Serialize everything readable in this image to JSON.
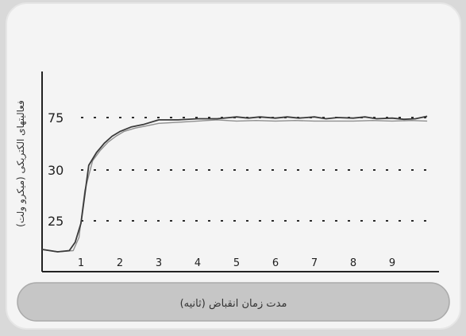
{
  "chart_data": {
    "type": "line",
    "ylabel": "فعالیتهای الکتریکی (میکرو ولت)",
    "xlabel": "مدت زمان انقباض (ثانیه)",
    "x_ticks": [
      "1",
      "2",
      "3",
      "4",
      "5",
      "6",
      "7",
      "8",
      "9"
    ],
    "reference_lines": [
      {
        "label": "75",
        "level": 75
      },
      {
        "label": "30",
        "level": 30
      },
      {
        "label": "25",
        "level": 25
      }
    ],
    "series": [
      {
        "style": "dark",
        "x": [
          0,
          0.4,
          0.7,
          0.85,
          1.0,
          1.2,
          1.4,
          1.6,
          1.8,
          2.0,
          2.3,
          2.6,
          3.0,
          3.5,
          4.0,
          4.5,
          5.0,
          5.3,
          5.6,
          6.0,
          6.3,
          6.6,
          7.0,
          7.3,
          7.6,
          8.0,
          8.3,
          8.6,
          9.0,
          9.3,
          9.6,
          9.9
        ],
        "y": [
          13,
          12,
          12.5,
          16,
          24,
          34,
          45,
          53,
          59,
          63,
          67,
          69,
          73,
          73,
          74,
          74,
          75.5,
          74.5,
          75.5,
          74.5,
          75.5,
          74.5,
          75.5,
          74,
          75,
          74.5,
          75.5,
          74,
          74.5,
          73.5,
          74,
          76
        ]
      },
      {
        "style": "light",
        "x": [
          0,
          0.4,
          0.8,
          0.95,
          1.1,
          1.3,
          1.5,
          1.7,
          1.9,
          2.1,
          2.4,
          2.7,
          3.0,
          3.5,
          4.0,
          4.5,
          5.0,
          5.5,
          6.0,
          6.5,
          7.0,
          7.5,
          8.0,
          8.5,
          9.0,
          9.5,
          9.9
        ],
        "y": [
          13,
          12,
          12.5,
          18,
          28,
          38,
          47,
          54,
          59,
          63,
          66,
          68,
          70,
          71,
          72,
          73,
          72,
          72.5,
          72,
          72.5,
          72,
          72,
          72,
          72.5,
          72,
          72.5,
          72
        ]
      }
    ]
  },
  "colors": {
    "background": "#d9d9d9",
    "card": "#f4f4f4",
    "dark_line": "#3a3a3a",
    "light_line": "#8f8f8f",
    "ref_line": "#2b2b2b",
    "axis": "#222222",
    "pill": "#c6c6c6"
  }
}
